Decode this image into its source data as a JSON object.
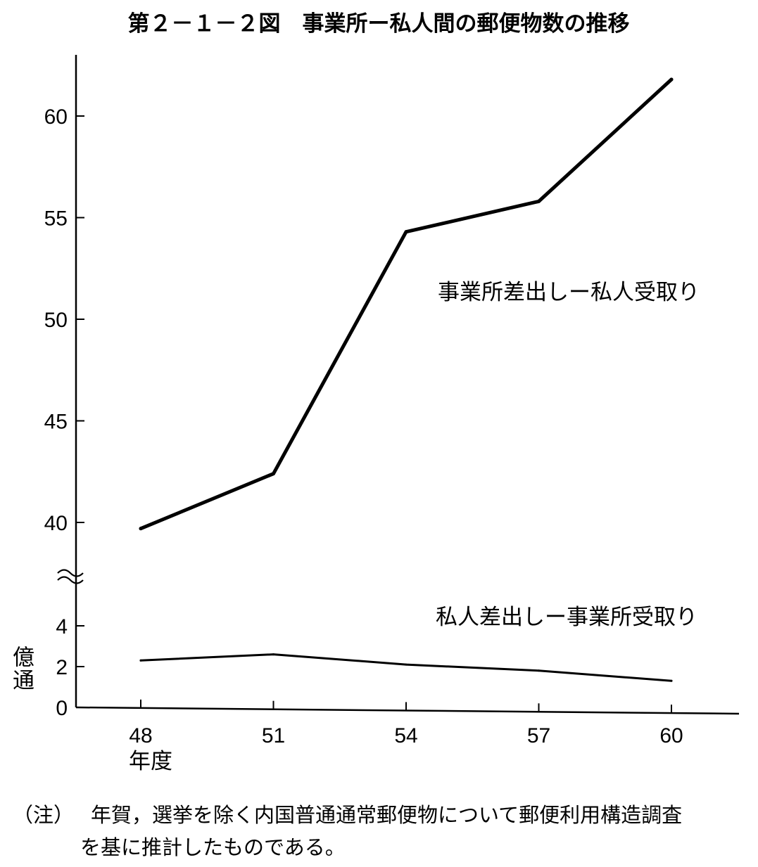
{
  "chart_data": {
    "type": "line",
    "title": "第２－１－２図　事業所ー私人間の郵便物数の推移",
    "x_axis": {
      "ticks": [
        "48",
        "51",
        "54",
        "57",
        "60"
      ],
      "unit_label": "年度"
    },
    "y_axis": {
      "unit_label": "億通",
      "broken_axis": true,
      "upper_ticks": [
        "40",
        "45",
        "50",
        "55",
        "60"
      ],
      "lower_ticks": [
        "0",
        "2",
        "4"
      ],
      "upper_range": [
        40,
        62
      ],
      "lower_range": [
        0,
        4
      ]
    },
    "x": [
      48,
      51,
      54,
      57,
      60
    ],
    "series": [
      {
        "name": "事業所差出しー私人受取り",
        "values": [
          39.7,
          42.4,
          54.3,
          55.8,
          61.8
        ]
      },
      {
        "name": "私人差出しー事業所受取り",
        "values": [
          2.3,
          2.6,
          2.1,
          1.8,
          1.3
        ]
      }
    ],
    "grid": false,
    "legend": "labels placed next to each line"
  },
  "note": {
    "mark": "（注）",
    "lines": [
      "年賀，選挙を除く内国普通通常郵便物について郵便利用構造調査",
      "を基に推計したものである。"
    ]
  }
}
